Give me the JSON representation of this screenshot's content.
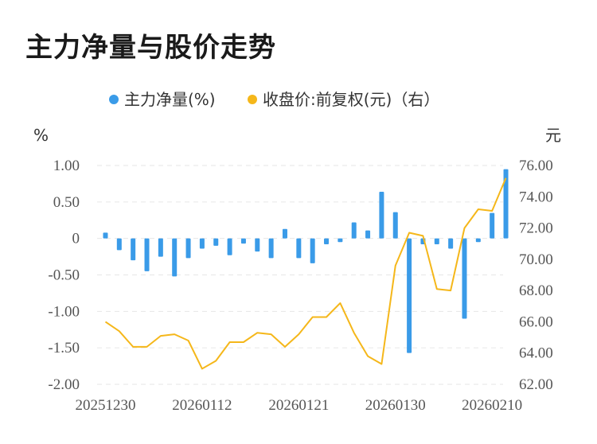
{
  "title": "主力净量与股价走势",
  "chart_data": {
    "type": "bar+line",
    "legend": [
      {
        "name": "主力净量(%)",
        "color": "#3a9be8"
      },
      {
        "name": "收盘价:前复权(元)（右）",
        "color": "#f5b71a"
      }
    ],
    "left_unit": "%",
    "right_unit": "元",
    "left_ticks": [
      "1.00",
      "0.50",
      "0",
      "-0.50",
      "-1.00",
      "-1.50",
      "-2.00"
    ],
    "right_ticks": [
      "76.00",
      "74.00",
      "72.00",
      "70.00",
      "68.00",
      "66.00",
      "64.00",
      "62.00"
    ],
    "left_ylim": [
      -2.0,
      1.0
    ],
    "right_ylim": [
      62.0,
      76.0
    ],
    "x_tick_labels": [
      "20251230",
      "20260112",
      "20260121",
      "20260130",
      "20260210"
    ],
    "x_tick_positions": [
      0,
      7,
      14,
      21,
      28
    ],
    "series": [
      {
        "name": "主力净量(%)",
        "type": "bar",
        "values": [
          0.08,
          -0.16,
          -0.3,
          -0.45,
          -0.25,
          -0.52,
          -0.27,
          -0.14,
          -0.1,
          -0.23,
          -0.07,
          -0.18,
          -0.27,
          0.13,
          -0.27,
          -0.34,
          -0.08,
          -0.05,
          0.22,
          0.11,
          0.64,
          0.36,
          -1.57,
          -0.08,
          -0.08,
          -0.14,
          -1.1,
          -0.05,
          0.35,
          0.95
        ]
      },
      {
        "name": "收盘价:前复权(元)（右）",
        "type": "line",
        "values": [
          66.0,
          65.4,
          64.4,
          64.4,
          65.1,
          65.2,
          64.8,
          63.0,
          63.5,
          64.7,
          64.7,
          65.3,
          65.2,
          64.4,
          65.2,
          66.3,
          66.3,
          67.2,
          65.3,
          63.8,
          63.3,
          69.6,
          71.7,
          71.5,
          68.1,
          68.0,
          72.0,
          73.2,
          73.1,
          75.2
        ]
      }
    ],
    "grid": true
  }
}
